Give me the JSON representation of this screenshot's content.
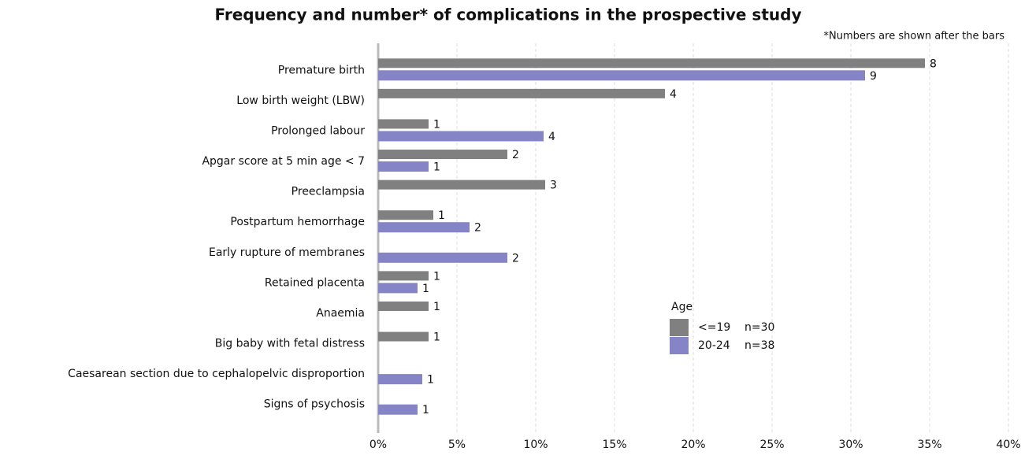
{
  "chart_data": {
    "type": "hbar",
    "title": "Frequency and number* of complications in the prospective study",
    "subtitle": "*Numbers are shown after the bars",
    "categories": [
      "Premature birth",
      "Low birth weight (LBW)",
      "Prolonged labour",
      "Apgar score at 5 min age < 7",
      "Preeclampsia",
      "Postpartum hemorrhage",
      "Early rupture of membranes",
      "Retained placenta",
      "Anaemia",
      "Big baby with fetal distress",
      "Caesarean section due to cephalopelvic disproportion",
      "Signs of psychosis"
    ],
    "series": [
      {
        "name": "<=19",
        "n": "n=30",
        "color": "#808080",
        "values": [
          34.7,
          18.2,
          3.2,
          8.2,
          10.6,
          3.5,
          null,
          3.2,
          3.2,
          3.2,
          null,
          null
        ],
        "counts": [
          8,
          4,
          1,
          2,
          3,
          1,
          null,
          1,
          1,
          1,
          null,
          null
        ]
      },
      {
        "name": "20-24",
        "n": "n=38",
        "color": "#8484c6",
        "values": [
          30.9,
          null,
          10.5,
          3.2,
          null,
          5.8,
          8.2,
          2.5,
          null,
          null,
          2.8,
          2.5
        ],
        "counts": [
          9,
          null,
          4,
          1,
          null,
          2,
          2,
          1,
          null,
          null,
          1,
          1
        ]
      }
    ],
    "legend_title": "Age",
    "xlim": [
      0,
      40
    ],
    "xticks": [
      {
        "value": 0,
        "label": "0%"
      },
      {
        "value": 5,
        "label": "5%"
      },
      {
        "value": 10,
        "label": "10%"
      },
      {
        "value": 15,
        "label": "15%"
      },
      {
        "value": 20,
        "label": "20%"
      },
      {
        "value": 25,
        "label": "25%"
      },
      {
        "value": 30,
        "label": "30%"
      },
      {
        "value": 35,
        "label": "35%"
      },
      {
        "value": 40,
        "label": "40%"
      }
    ],
    "grid": true
  }
}
